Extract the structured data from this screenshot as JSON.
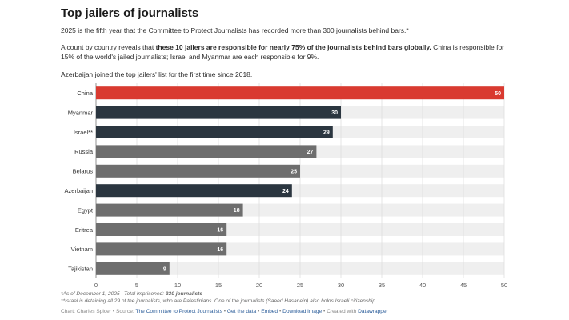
{
  "header": {
    "title": "Top jailers of journalists",
    "subtitle": "2025 is the fifth year that the Committee to Protect Journalists has recorded more than 300 journalists behind bars.*",
    "para2_pre": "A count by country reveals that ",
    "para2_bold": "these 10 jailers are responsible for nearly 75% of the journalists behind bars globally.",
    "para2_post": " China is responsible for 15% of the world's jailed journalists; Israel and Myanmar are each responsible for 9%.",
    "para3": "Azerbaijan joined the top jailers' list for the first time since 2018."
  },
  "colors": {
    "highlight": "#d93a30",
    "dark": "#2b3640",
    "gray": "#6e6e6e",
    "track": "#efefef"
  },
  "chart_data": {
    "type": "bar",
    "orientation": "horizontal",
    "categories": [
      "China",
      "Myanmar",
      "Israel**",
      "Russia",
      "Belarus",
      "Azerbaijan",
      "Egypt",
      "Eritrea",
      "Vietnam",
      "Tajikistan"
    ],
    "values": [
      50,
      30,
      29,
      27,
      25,
      24,
      18,
      16,
      16,
      9
    ],
    "bar_color_keys": [
      "highlight",
      "dark",
      "dark",
      "gray",
      "gray",
      "dark",
      "gray",
      "gray",
      "gray",
      "gray"
    ],
    "xlim": [
      0,
      50
    ],
    "xticks": [
      0,
      5,
      10,
      15,
      20,
      25,
      30,
      35,
      40,
      45,
      50
    ],
    "grid": true,
    "data_labels": true
  },
  "footer": {
    "note1_pre": "*As of December 1, 2025 | Total imprisoned: ",
    "note1_bold": "330 journalists",
    "note2": "**Israel is detaining all 29 of the journalists, who are Palestinians. One of the journalists (Saeed Hasanein) also holds Israeli citizenship.",
    "credit_pre": "Chart: Charles Spicer • Source: ",
    "source": "The Committee to Protect Journalists",
    "sep": " • ",
    "get_data": "Get the data",
    "embed": "Embed",
    "download": "Download image",
    "created_pre": "Created with ",
    "datawrapper": "Datawrapper"
  }
}
